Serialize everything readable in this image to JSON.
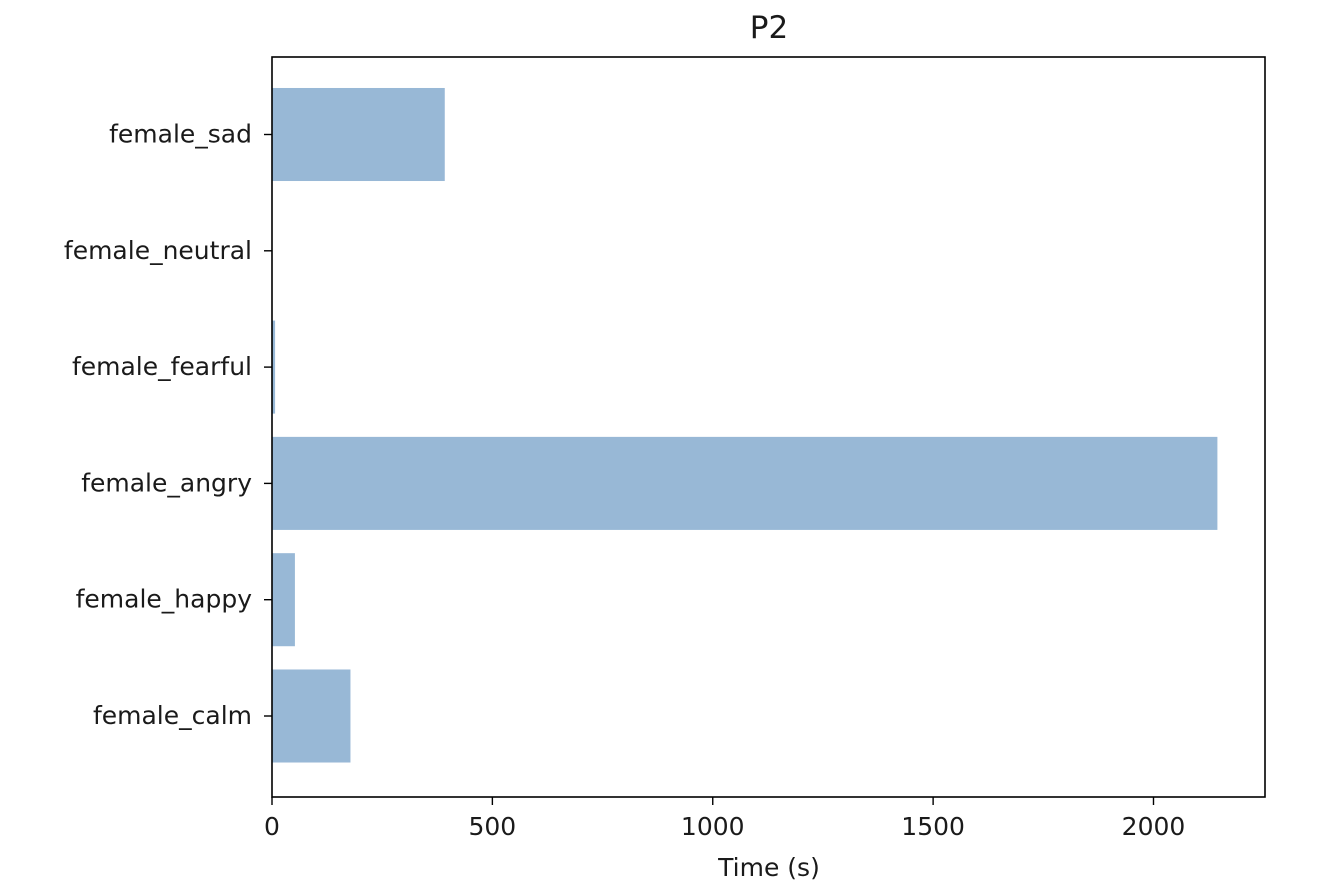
{
  "chart_data": {
    "type": "bar",
    "orientation": "horizontal",
    "title": "P2",
    "xlabel": "Time (s)",
    "ylabel": "",
    "categories": [
      "female_calm",
      "female_happy",
      "female_angry",
      "female_fearful",
      "female_neutral",
      "female_sad"
    ],
    "values": [
      178,
      52,
      2145,
      7,
      0,
      392
    ],
    "xlim": [
      0,
      2253
    ],
    "xticks": [
      0,
      500,
      1000,
      1500,
      2000
    ],
    "xtick_labels": [
      "0",
      "500",
      "1000",
      "1500",
      "2000"
    ],
    "grid": false,
    "legend": false,
    "colors": {
      "bar": "#98b8d6",
      "axis": "#000000",
      "text": "#1a1a1a"
    }
  }
}
